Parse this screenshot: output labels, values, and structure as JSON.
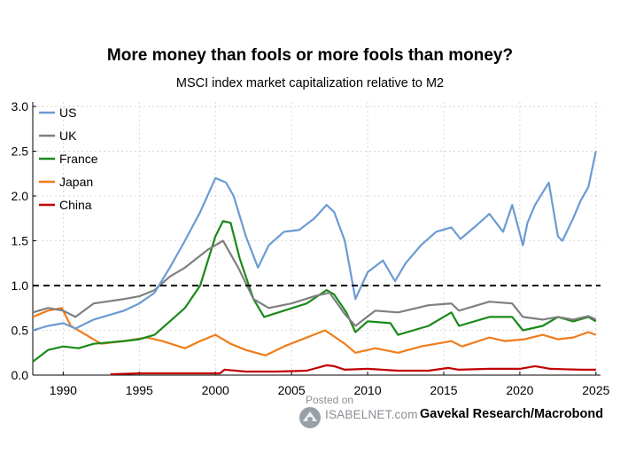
{
  "header": {
    "title": "More money than fools or more fools than money?",
    "subtitle": "MSCI index market capitalization relative to M2"
  },
  "footer": {
    "posted_on": "Posted on",
    "site": "ISABELNET.com",
    "source": "Gavekal Research/Macrobond"
  },
  "chart_data": {
    "type": "line",
    "title": "More money than fools or more fools than money?",
    "subtitle": "MSCI index market capitalization relative to M2",
    "xlabel": "",
    "ylabel": "",
    "xlim": [
      1988,
      2025.3
    ],
    "ylim": [
      0,
      3.05
    ],
    "xticks": [
      1990,
      1995,
      2000,
      2005,
      2010,
      2015,
      2020,
      2025
    ],
    "xtick_labels": [
      "1990",
      "1995",
      "2000",
      "2005",
      "2010",
      "2015",
      "2020",
      "2025"
    ],
    "yticks": [
      0.0,
      0.5,
      1.0,
      1.5,
      2.0,
      2.5,
      3.0
    ],
    "ytick_labels": [
      "0.0",
      "0.5",
      "1.0",
      "1.5",
      "2.0",
      "2.5",
      "3.0"
    ],
    "grid": true,
    "legend_position": "top-left",
    "reference_line": {
      "y": 1.0,
      "style": "dashed",
      "color": "#000000"
    },
    "series": [
      {
        "name": "US",
        "color": "#6b9bd2",
        "x": [
          1988,
          1989,
          1990,
          1990.8,
          1992,
          1994,
          1995,
          1996,
          1997,
          1998,
          1999,
          2000,
          2000.7,
          2001.2,
          2002,
          2002.8,
          2003.5,
          2004.5,
          2005.5,
          2006.5,
          2007.3,
          2007.8,
          2008.5,
          2009.2,
          2010,
          2011,
          2011.8,
          2012.5,
          2013.5,
          2014.5,
          2015.5,
          2016.1,
          2017,
          2018,
          2018.9,
          2019.5,
          2020.2,
          2020.5,
          2021,
          2021.9,
          2022.5,
          2022.8,
          2023.5,
          2024,
          2024.5,
          2025
        ],
        "y": [
          0.5,
          0.55,
          0.58,
          0.52,
          0.62,
          0.72,
          0.8,
          0.92,
          1.2,
          1.5,
          1.82,
          2.2,
          2.15,
          2.0,
          1.55,
          1.2,
          1.45,
          1.6,
          1.62,
          1.75,
          1.9,
          1.82,
          1.5,
          0.85,
          1.15,
          1.28,
          1.05,
          1.25,
          1.45,
          1.6,
          1.65,
          1.52,
          1.65,
          1.8,
          1.6,
          1.9,
          1.45,
          1.7,
          1.9,
          2.15,
          1.55,
          1.5,
          1.75,
          1.95,
          2.1,
          2.5
        ]
      },
      {
        "name": "UK",
        "color": "#7f7f7f",
        "x": [
          1988,
          1989,
          1990,
          1990.8,
          1992,
          1994,
          1995,
          1996,
          1997,
          1998,
          1999.5,
          2000.5,
          2001.5,
          2002.5,
          2003.5,
          2005,
          2006.5,
          2007.5,
          2008.5,
          2009.2,
          2010.5,
          2012,
          2014,
          2015.5,
          2016,
          2018,
          2019.5,
          2020.2,
          2021.5,
          2022.5,
          2023.5,
          2024.5,
          2025
        ],
        "y": [
          0.7,
          0.75,
          0.72,
          0.65,
          0.8,
          0.85,
          0.88,
          0.95,
          1.1,
          1.2,
          1.4,
          1.5,
          1.2,
          0.85,
          0.75,
          0.8,
          0.88,
          0.92,
          0.68,
          0.55,
          0.72,
          0.7,
          0.78,
          0.8,
          0.72,
          0.82,
          0.8,
          0.65,
          0.62,
          0.65,
          0.62,
          0.66,
          0.62
        ]
      },
      {
        "name": "France",
        "color": "#1a8a1a",
        "x": [
          1988,
          1989,
          1990,
          1991,
          1992,
          1994,
          1995,
          1996,
          1997,
          1998,
          1999,
          2000,
          2000.5,
          2001,
          2001.6,
          2002.5,
          2003.2,
          2004.5,
          2006,
          2007.3,
          2007.8,
          2008.6,
          2009.2,
          2010,
          2011.5,
          2012,
          2014,
          2015.5,
          2016,
          2018,
          2019.5,
          2020.2,
          2021.5,
          2022.5,
          2023.5,
          2024.5,
          2025
        ],
        "y": [
          0.15,
          0.28,
          0.32,
          0.3,
          0.35,
          0.38,
          0.4,
          0.45,
          0.6,
          0.75,
          1.0,
          1.55,
          1.72,
          1.7,
          1.3,
          0.85,
          0.65,
          0.72,
          0.8,
          0.95,
          0.9,
          0.7,
          0.48,
          0.6,
          0.58,
          0.45,
          0.55,
          0.7,
          0.55,
          0.65,
          0.65,
          0.5,
          0.55,
          0.65,
          0.6,
          0.65,
          0.6
        ]
      },
      {
        "name": "Japan",
        "color": "#f07c1a",
        "x": [
          1988,
          1989,
          1989.9,
          1990.5,
          1991.5,
          1992.5,
          1994,
          1995.5,
          1996.5,
          1998,
          1999,
          2000,
          2001,
          2002,
          2003.3,
          2004.5,
          2006,
          2007.2,
          2008.5,
          2009.2,
          2010.5,
          2012,
          2013.5,
          2015.5,
          2016.2,
          2018,
          2019,
          2020.3,
          2021.5,
          2022.5,
          2023.5,
          2024.5,
          2025
        ],
        "y": [
          0.65,
          0.72,
          0.75,
          0.55,
          0.45,
          0.35,
          0.38,
          0.42,
          0.38,
          0.3,
          0.38,
          0.45,
          0.35,
          0.28,
          0.22,
          0.32,
          0.42,
          0.5,
          0.35,
          0.25,
          0.3,
          0.25,
          0.32,
          0.38,
          0.32,
          0.42,
          0.38,
          0.4,
          0.45,
          0.4,
          0.42,
          0.48,
          0.45
        ]
      },
      {
        "name": "China",
        "color": "#c00000",
        "x": [
          1993.1,
          1995,
          1998,
          2000.3,
          2000.6,
          2002,
          2004,
          2006,
          2007.3,
          2007.8,
          2008.5,
          2010,
          2012,
          2014,
          2015.3,
          2016,
          2018,
          2020,
          2021,
          2022,
          2024,
          2025
        ],
        "y": [
          0.01,
          0.02,
          0.02,
          0.02,
          0.06,
          0.04,
          0.04,
          0.05,
          0.11,
          0.1,
          0.06,
          0.07,
          0.05,
          0.05,
          0.08,
          0.06,
          0.07,
          0.07,
          0.1,
          0.07,
          0.06,
          0.06
        ]
      }
    ]
  }
}
